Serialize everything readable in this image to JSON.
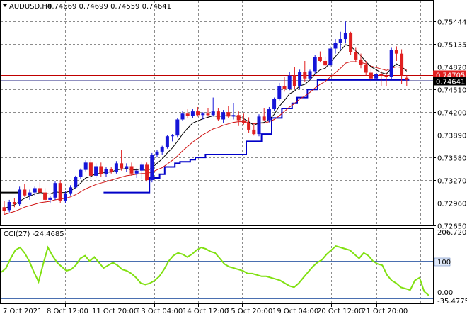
{
  "header": {
    "symbol": "AUDUSD,H4",
    "ohlc": "0.74669 0.74699 0.74559 0.74641",
    "open": "0.74669",
    "high": "0.74699",
    "low": "0.74559",
    "close": "0.74641"
  },
  "cci_label": "CCI(27) -24.4685",
  "colors": {
    "bull": "#1515d8",
    "bear": "#e02020",
    "ma_fast": "#000000",
    "ma_slow": "#d01010",
    "stop": "#0000c8",
    "cci": "#80e010",
    "bid_line": "#0000c8",
    "ref_line": "#c00000",
    "bid_badge": "#000000",
    "ref_badge": "#e02020"
  },
  "chart_data": [
    {
      "type": "candlestick",
      "title": "",
      "symbol": "AUDUSD",
      "timeframe": "H4",
      "ylim": [
        0.7265,
        0.7554
      ],
      "y_ticks": [
        "0.75444",
        "0.75135",
        "0.74820",
        "0.74510",
        "0.74200",
        "0.73890",
        "0.73580",
        "0.73270",
        "0.72960",
        "0.72650"
      ],
      "x_tick_labels": [
        "7 Oct 2021",
        "8 Oct 12:00",
        "11 Oct 20:00",
        "13 Oct 04:00",
        "14 Oct 12:00",
        "15 Oct 20:00",
        "19 Oct 04:00",
        "20 Oct 12:00",
        "21 Oct 20:00"
      ],
      "current_price": "0.74641",
      "reference_price": "0.74705",
      "grid": true,
      "candles": [
        [
          0.729,
          0.7298,
          0.728,
          0.7285
        ],
        [
          0.7286,
          0.73,
          0.7283,
          0.7297
        ],
        [
          0.7297,
          0.7302,
          0.729,
          0.7294
        ],
        [
          0.7294,
          0.7318,
          0.7292,
          0.7314
        ],
        [
          0.7314,
          0.7322,
          0.7304,
          0.7306
        ],
        [
          0.7306,
          0.7314,
          0.73,
          0.731
        ],
        [
          0.731,
          0.7318,
          0.7306,
          0.7316
        ],
        [
          0.7316,
          0.7324,
          0.7308,
          0.731
        ],
        [
          0.731,
          0.7316,
          0.7296,
          0.73
        ],
        [
          0.73,
          0.7305,
          0.7295,
          0.7303
        ],
        [
          0.7303,
          0.7325,
          0.73,
          0.7323
        ],
        [
          0.7323,
          0.7327,
          0.7296,
          0.7299
        ],
        [
          0.7299,
          0.7312,
          0.7296,
          0.7309
        ],
        [
          0.7309,
          0.732,
          0.7306,
          0.7317
        ],
        [
          0.7317,
          0.7333,
          0.7315,
          0.7331
        ],
        [
          0.7331,
          0.7343,
          0.7328,
          0.7341
        ],
        [
          0.7341,
          0.7354,
          0.7339,
          0.7351
        ],
        [
          0.7351,
          0.7356,
          0.7329,
          0.7333
        ],
        [
          0.7333,
          0.735,
          0.733,
          0.7346
        ],
        [
          0.7346,
          0.7351,
          0.7331,
          0.7335
        ],
        [
          0.7335,
          0.7345,
          0.7331,
          0.7342
        ],
        [
          0.7342,
          0.7345,
          0.7336,
          0.7338
        ],
        [
          0.7338,
          0.7353,
          0.7336,
          0.735
        ],
        [
          0.735,
          0.7368,
          0.734,
          0.7343
        ],
        [
          0.7343,
          0.735,
          0.7338,
          0.7346
        ],
        [
          0.7346,
          0.7351,
          0.7333,
          0.7336
        ],
        [
          0.7336,
          0.7343,
          0.733,
          0.734
        ],
        [
          0.734,
          0.7351,
          0.7328,
          0.7348
        ],
        [
          0.7348,
          0.7351,
          0.7325,
          0.7327
        ],
        [
          0.7327,
          0.7364,
          0.7324,
          0.7361
        ],
        [
          0.7361,
          0.7368,
          0.7358,
          0.7366
        ],
        [
          0.7366,
          0.7374,
          0.7362,
          0.7372
        ],
        [
          0.7372,
          0.7389,
          0.737,
          0.7387
        ],
        [
          0.7387,
          0.739,
          0.738,
          0.7388
        ],
        [
          0.7388,
          0.7412,
          0.7386,
          0.741
        ],
        [
          0.741,
          0.7422,
          0.7408,
          0.7418
        ],
        [
          0.7418,
          0.7424,
          0.7412,
          0.7415
        ],
        [
          0.7415,
          0.7424,
          0.7412,
          0.7421
        ],
        [
          0.7421,
          0.7427,
          0.7414,
          0.7416
        ],
        [
          0.7416,
          0.742,
          0.741,
          0.7418
        ],
        [
          0.7418,
          0.7425,
          0.7414,
          0.7416
        ],
        [
          0.7416,
          0.744,
          0.7414,
          0.7421
        ],
        [
          0.7421,
          0.7425,
          0.7408,
          0.741
        ],
        [
          0.741,
          0.7423,
          0.7405,
          0.742
        ],
        [
          0.742,
          0.7428,
          0.7412,
          0.7414
        ],
        [
          0.7414,
          0.7432,
          0.741,
          0.7416
        ],
        [
          0.7416,
          0.7421,
          0.7401,
          0.7409
        ],
        [
          0.7409,
          0.7418,
          0.7403,
          0.7405
        ],
        [
          0.7405,
          0.7413,
          0.7392,
          0.7396
        ],
        [
          0.7396,
          0.7403,
          0.7388,
          0.739
        ],
        [
          0.739,
          0.7417,
          0.7387,
          0.7414
        ],
        [
          0.7414,
          0.7425,
          0.7408,
          0.7409
        ],
        [
          0.7409,
          0.7427,
          0.7406,
          0.7424
        ],
        [
          0.7424,
          0.744,
          0.7422,
          0.7438
        ],
        [
          0.7438,
          0.746,
          0.7436,
          0.7456
        ],
        [
          0.7456,
          0.7468,
          0.7448,
          0.7452
        ],
        [
          0.7452,
          0.7475,
          0.745,
          0.747
        ],
        [
          0.747,
          0.7482,
          0.7452,
          0.7456
        ],
        [
          0.7456,
          0.7478,
          0.7452,
          0.7475
        ],
        [
          0.7475,
          0.749,
          0.7462,
          0.7466
        ],
        [
          0.7466,
          0.7478,
          0.7464,
          0.7476
        ],
        [
          0.7476,
          0.7498,
          0.7472,
          0.7495
        ],
        [
          0.7495,
          0.7503,
          0.7488,
          0.749
        ],
        [
          0.749,
          0.7496,
          0.7478,
          0.7484
        ],
        [
          0.7484,
          0.751,
          0.7482,
          0.7507
        ],
        [
          0.7507,
          0.752,
          0.75,
          0.7515
        ],
        [
          0.7515,
          0.753,
          0.7505,
          0.752
        ],
        [
          0.752,
          0.7544,
          0.7514,
          0.7528
        ],
        [
          0.7528,
          0.753,
          0.7498,
          0.7502
        ],
        [
          0.7502,
          0.7508,
          0.7488,
          0.7492
        ],
        [
          0.7492,
          0.75,
          0.748,
          0.7485
        ],
        [
          0.7485,
          0.749,
          0.747,
          0.7474
        ],
        [
          0.7474,
          0.748,
          0.7462,
          0.7466
        ],
        [
          0.7466,
          0.7478,
          0.7462,
          0.7472
        ],
        [
          0.7472,
          0.7476,
          0.7456,
          0.747
        ],
        [
          0.747,
          0.7474,
          0.7456,
          0.7468
        ],
        [
          0.7468,
          0.7508,
          0.7464,
          0.7505
        ],
        [
          0.7505,
          0.751,
          0.749,
          0.75
        ],
        [
          0.75,
          0.7506,
          0.7458,
          0.747
        ],
        [
          0.7467,
          0.747,
          0.7456,
          0.7464
        ]
      ],
      "ma_fast": [
        0.7288,
        0.7291,
        0.7293,
        0.7298,
        0.7302,
        0.7305,
        0.7308,
        0.731,
        0.7309,
        0.7308,
        0.7311,
        0.731,
        0.731,
        0.7312,
        0.7317,
        0.7323,
        0.733,
        0.7332,
        0.7336,
        0.7336,
        0.7338,
        0.7338,
        0.7341,
        0.7342,
        0.7343,
        0.7341,
        0.7341,
        0.7343,
        0.7339,
        0.7344,
        0.735,
        0.7356,
        0.7364,
        0.7371,
        0.738,
        0.739,
        0.7398,
        0.7405,
        0.7408,
        0.7411,
        0.7413,
        0.7415,
        0.7414,
        0.7415,
        0.7415,
        0.7415,
        0.7414,
        0.7411,
        0.7407,
        0.7402,
        0.7405,
        0.7406,
        0.741,
        0.7417,
        0.7428,
        0.7436,
        0.7445,
        0.7449,
        0.7456,
        0.7458,
        0.7464,
        0.7472,
        0.7478,
        0.748,
        0.7488,
        0.7496,
        0.7504,
        0.7512,
        0.751,
        0.7504,
        0.7497,
        0.7489,
        0.7482,
        0.7478,
        0.7474,
        0.7472,
        0.748,
        0.7486,
        0.7482,
        0.7476
      ],
      "ma_slow": [
        0.728,
        0.7282,
        0.7284,
        0.7287,
        0.729,
        0.7292,
        0.7294,
        0.7296,
        0.7297,
        0.7298,
        0.73,
        0.7301,
        0.7302,
        0.7304,
        0.7307,
        0.7311,
        0.7315,
        0.7318,
        0.7321,
        0.7323,
        0.7325,
        0.7327,
        0.7329,
        0.7331,
        0.7333,
        0.7334,
        0.7335,
        0.7336,
        0.7336,
        0.7338,
        0.7341,
        0.7344,
        0.7349,
        0.7354,
        0.736,
        0.7367,
        0.7373,
        0.7379,
        0.7384,
        0.7389,
        0.7393,
        0.7397,
        0.7399,
        0.7402,
        0.7404,
        0.7406,
        0.7407,
        0.7407,
        0.7406,
        0.7404,
        0.7405,
        0.7405,
        0.7407,
        0.741,
        0.7415,
        0.7421,
        0.7427,
        0.7432,
        0.7438,
        0.7442,
        0.7447,
        0.7453,
        0.7458,
        0.7462,
        0.7468,
        0.7474,
        0.748,
        0.7487,
        0.7489,
        0.7489,
        0.7488,
        0.7486,
        0.7483,
        0.7481,
        0.7479,
        0.7477,
        0.748,
        0.7482,
        0.7481,
        0.7478
      ],
      "stop_line": [
        null,
        null,
        null,
        null,
        null,
        null,
        null,
        null,
        null,
        null,
        null,
        null,
        null,
        null,
        null,
        null,
        null,
        null,
        null,
        null,
        0.731,
        0.731,
        0.731,
        0.731,
        0.731,
        0.731,
        0.731,
        0.731,
        0.731,
        0.733,
        0.733,
        0.7335,
        0.7345,
        0.7345,
        0.735,
        0.7352,
        0.7352,
        0.7355,
        0.7358,
        0.7358,
        0.7362,
        0.7362,
        0.7362,
        0.7362,
        0.7362,
        0.7362,
        0.7362,
        0.7362,
        0.738,
        0.738,
        0.738,
        0.739,
        0.739,
        0.7412,
        0.7412,
        0.7425,
        0.7425,
        0.7432,
        0.744,
        0.744,
        0.7451,
        0.7451,
        0.7464,
        0.7464,
        0.7464,
        0.7464,
        0.7464,
        0.7464,
        0.7464,
        0.7464,
        0.7464,
        0.7464,
        0.7464,
        0.7464,
        0.7464,
        0.7464,
        0.7464,
        0.7464,
        0.7464,
        0.7464
      ]
    },
    {
      "type": "line",
      "title": "CCI(27) -24.4685",
      "ylim": [
        -35.4775,
        206.7205
      ],
      "y_ticks": [
        "206.7205",
        "100",
        "0.00",
        "-35.4775"
      ],
      "levels": [
        100,
        -35.4775
      ],
      "series": [
        {
          "name": "CCI(27)",
          "values": [
            60,
            75,
            110,
            140,
            150,
            130,
            100,
            60,
            25,
            90,
            150,
            120,
            95,
            80,
            65,
            70,
            85,
            110,
            120,
            100,
            115,
            95,
            75,
            85,
            95,
            85,
            70,
            65,
            55,
            40,
            20,
            15,
            20,
            30,
            45,
            70,
            100,
            120,
            130,
            125,
            115,
            125,
            140,
            150,
            145,
            135,
            130,
            110,
            90,
            80,
            75,
            70,
            65,
            55,
            55,
            50,
            45,
            45,
            40,
            35,
            30,
            20,
            10,
            5,
            20,
            40,
            60,
            80,
            95,
            105,
            125,
            140,
            155,
            150,
            145,
            140,
            125,
            110,
            130,
            120,
            100,
            90,
            85,
            50,
            30,
            20,
            5,
            0,
            -5,
            30,
            40,
            -10,
            -24.4685
          ]
        }
      ]
    }
  ]
}
